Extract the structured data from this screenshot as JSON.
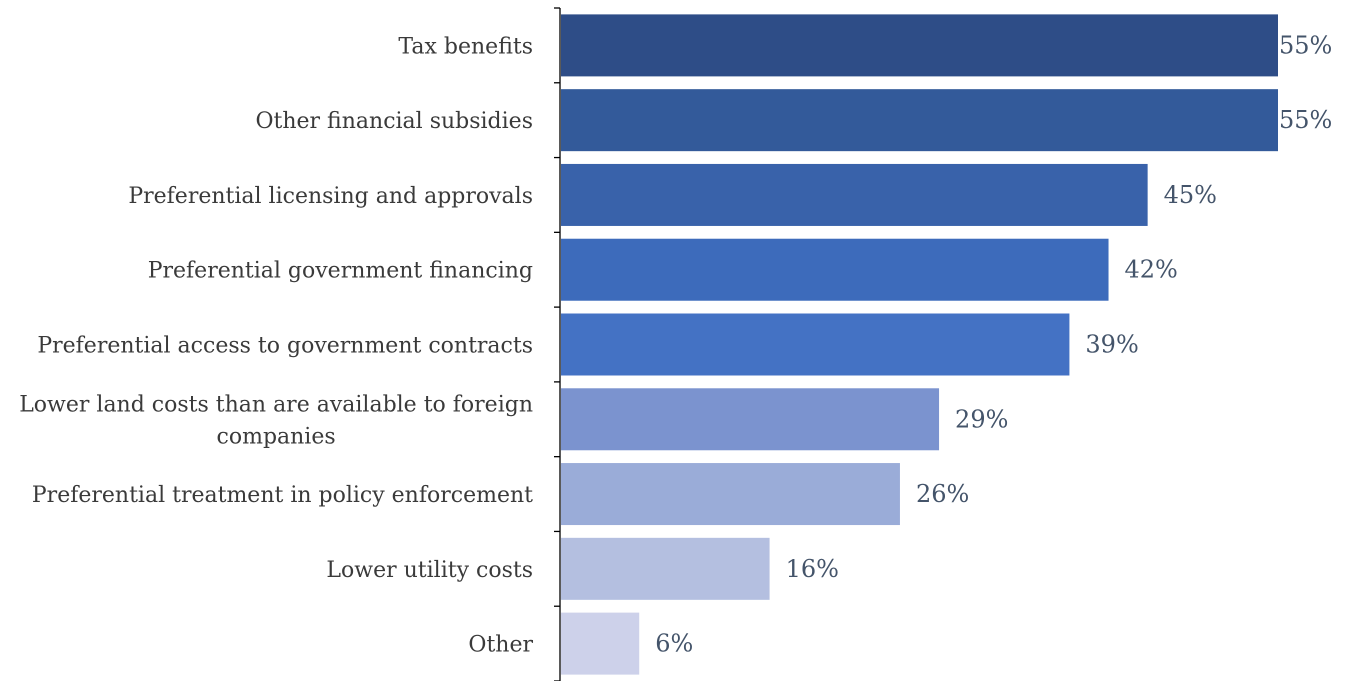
{
  "chart_data": {
    "type": "bar",
    "orientation": "horizontal",
    "categories": [
      [
        "Tax benefits"
      ],
      [
        "Other financial subsidies"
      ],
      [
        "Preferential licensing and approvals"
      ],
      [
        "Preferential government financing"
      ],
      [
        "Preferential access to government contracts"
      ],
      [
        "Lower land costs than are available to foreign",
        "companies"
      ],
      [
        "Preferential treatment in policy enforcement"
      ],
      [
        "Lower utility costs"
      ],
      [
        "Other"
      ]
    ],
    "values": [
      55,
      55,
      45,
      42,
      39,
      29,
      26,
      16,
      6
    ],
    "value_labels": [
      "55%",
      "55%",
      "45%",
      "42%",
      "39%",
      "29%",
      "26%",
      "16%",
      "6%"
    ],
    "colors": [
      "#2e4d87",
      "#335a9a",
      "#3962aa",
      "#3d6bbb",
      "#4472c4",
      "#7b93cf",
      "#9aacd8",
      "#b4bfe0",
      "#cdd1ea"
    ],
    "xlim": [
      0,
      55
    ],
    "grid": false,
    "legend": "none"
  }
}
